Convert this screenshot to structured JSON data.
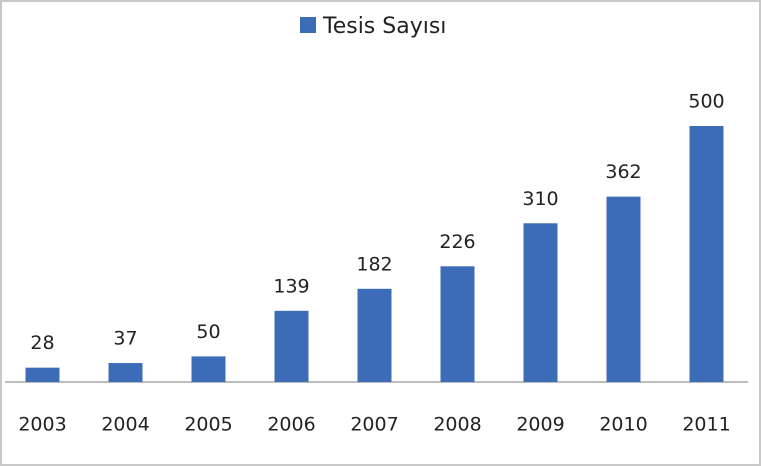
{
  "chart_data": {
    "type": "bar",
    "categories": [
      "2003",
      "2004",
      "2005",
      "2006",
      "2007",
      "2008",
      "2009",
      "2010",
      "2011"
    ],
    "series": [
      {
        "name": "Tesis Sayısı",
        "color": "#3c6cb8",
        "values": [
          28,
          37,
          50,
          139,
          182,
          226,
          310,
          362,
          500
        ]
      }
    ],
    "ylim": [
      0,
      500
    ]
  }
}
